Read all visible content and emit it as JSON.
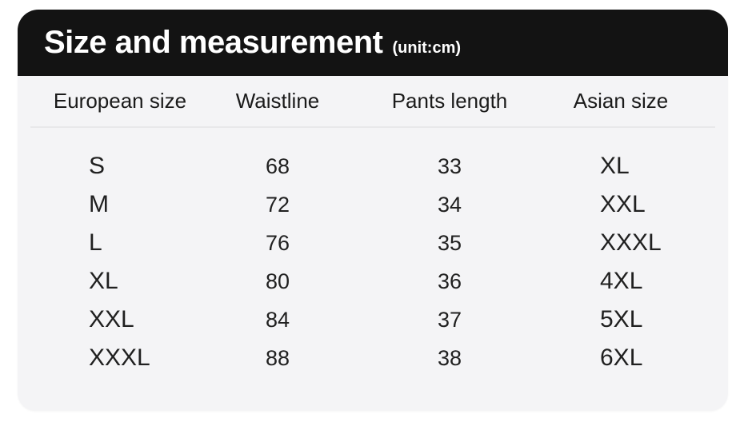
{
  "header": {
    "title": "Size and measurement",
    "unit_label": "(unit:cm)"
  },
  "table": {
    "columns": [
      "European size",
      "Waistline",
      "Pants length",
      "Asian size"
    ],
    "rows": [
      [
        "S",
        "68",
        "33",
        "XL"
      ],
      [
        "M",
        "72",
        "34",
        "XXL"
      ],
      [
        "L",
        "76",
        "35",
        "XXXL"
      ],
      [
        "XL",
        "80",
        "36",
        "4XL"
      ],
      [
        "XXL",
        "84",
        "37",
        "5XL"
      ],
      [
        "XXXL",
        "88",
        "38",
        "6XL"
      ]
    ]
  },
  "chart_data": {
    "type": "table",
    "title": "Size and measurement",
    "unit": "cm",
    "columns": [
      "European size",
      "Waistline",
      "Pants length",
      "Asian size"
    ],
    "rows": [
      [
        "S",
        68,
        33,
        "XL"
      ],
      [
        "M",
        72,
        34,
        "XXL"
      ],
      [
        "L",
        76,
        35,
        "XXXL"
      ],
      [
        "XL",
        80,
        36,
        "4XL"
      ],
      [
        "XXL",
        84,
        37,
        "5XL"
      ],
      [
        "XXXL",
        88,
        38,
        "6XL"
      ]
    ]
  },
  "colors": {
    "header_bg": "#131313",
    "panel_bg": "#f4f4f6",
    "title_text": "#ffffff",
    "body_text": "#202020",
    "divider": "#e8e8ea"
  }
}
